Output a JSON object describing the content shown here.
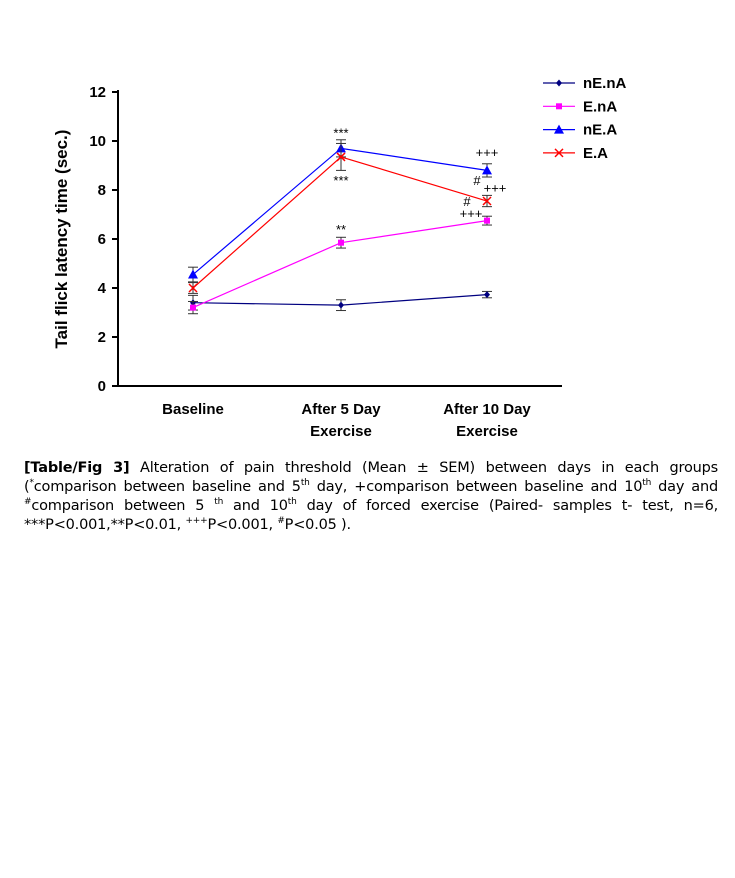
{
  "chart_data": {
    "type": "line",
    "title": "",
    "xlabel": "",
    "ylabel": "Tail flick latency time (sec.)",
    "ylim": [
      0,
      12
    ],
    "yticks": [
      "0",
      "2",
      "4",
      "6",
      "8",
      "10",
      "12"
    ],
    "categories": [
      [
        "Baseline"
      ],
      [
        "After 5 Day",
        "Exercise"
      ],
      [
        "After 10 Day",
        "Exercise"
      ]
    ],
    "legend_position": "top-right",
    "series": [
      {
        "name": "nE.nA",
        "color": "#000080",
        "marker": "diamond",
        "values": [
          3.4,
          3.3,
          3.73
        ],
        "errors": [
          0.3,
          0.22,
          0.13
        ]
      },
      {
        "name": "E.nA",
        "color": "#ff00ff",
        "marker": "square",
        "values": [
          3.2,
          5.85,
          6.75
        ],
        "errors": [
          0.25,
          0.22,
          0.18
        ]
      },
      {
        "name": "nE.A",
        "color": "#0000ff",
        "marker": "triangle",
        "values": [
          4.55,
          9.7,
          8.8
        ],
        "errors": [
          0.3,
          0.35,
          0.27
        ]
      },
      {
        "name": "E.A",
        "color": "#ff0000",
        "marker": "x",
        "values": [
          4.0,
          9.35,
          7.55
        ],
        "errors": [
          0.22,
          0.55,
          0.23
        ]
      }
    ],
    "annotations": [
      {
        "text": "***",
        "category": 1,
        "y": 10.15,
        "note": "above nE.A"
      },
      {
        "text": "***",
        "category": 1,
        "y": 8.2,
        "note": "below E.A"
      },
      {
        "text": "**",
        "category": 1,
        "y": 6.2,
        "note": "above E.nA"
      },
      {
        "text": "+++",
        "category": 2,
        "y": 9.35
      },
      {
        "text": "#",
        "category": 2,
        "y": 8.2,
        "dx": -10
      },
      {
        "text": "+++",
        "category": 2,
        "y": 7.9,
        "dx": 8
      },
      {
        "text": "#",
        "category": 2,
        "y": 7.35,
        "dx": -20
      },
      {
        "text": "+++",
        "category": 2,
        "y": 6.85,
        "dx": -16
      }
    ]
  },
  "caption": {
    "label": "[Table/Fig 3]",
    "p1": " Alteration of pain threshold (Mean ± SEM) between days in each groups (",
    "star": "*",
    "p2": "comparison between baseline and 5",
    "th": "th",
    "p3": " day, +comparison between baseline and 10",
    "p4": " day and ",
    "hash": "#",
    "p5": "comparison between 5 ",
    "p6": " and 10",
    "p7": " day of forced exercise (Paired- samples t- test, n=6, ***P<0.001,**P<0.01, ",
    "plus": "+++",
    "p8": "P<0.001, ",
    "p9": "P<0.05 )."
  }
}
